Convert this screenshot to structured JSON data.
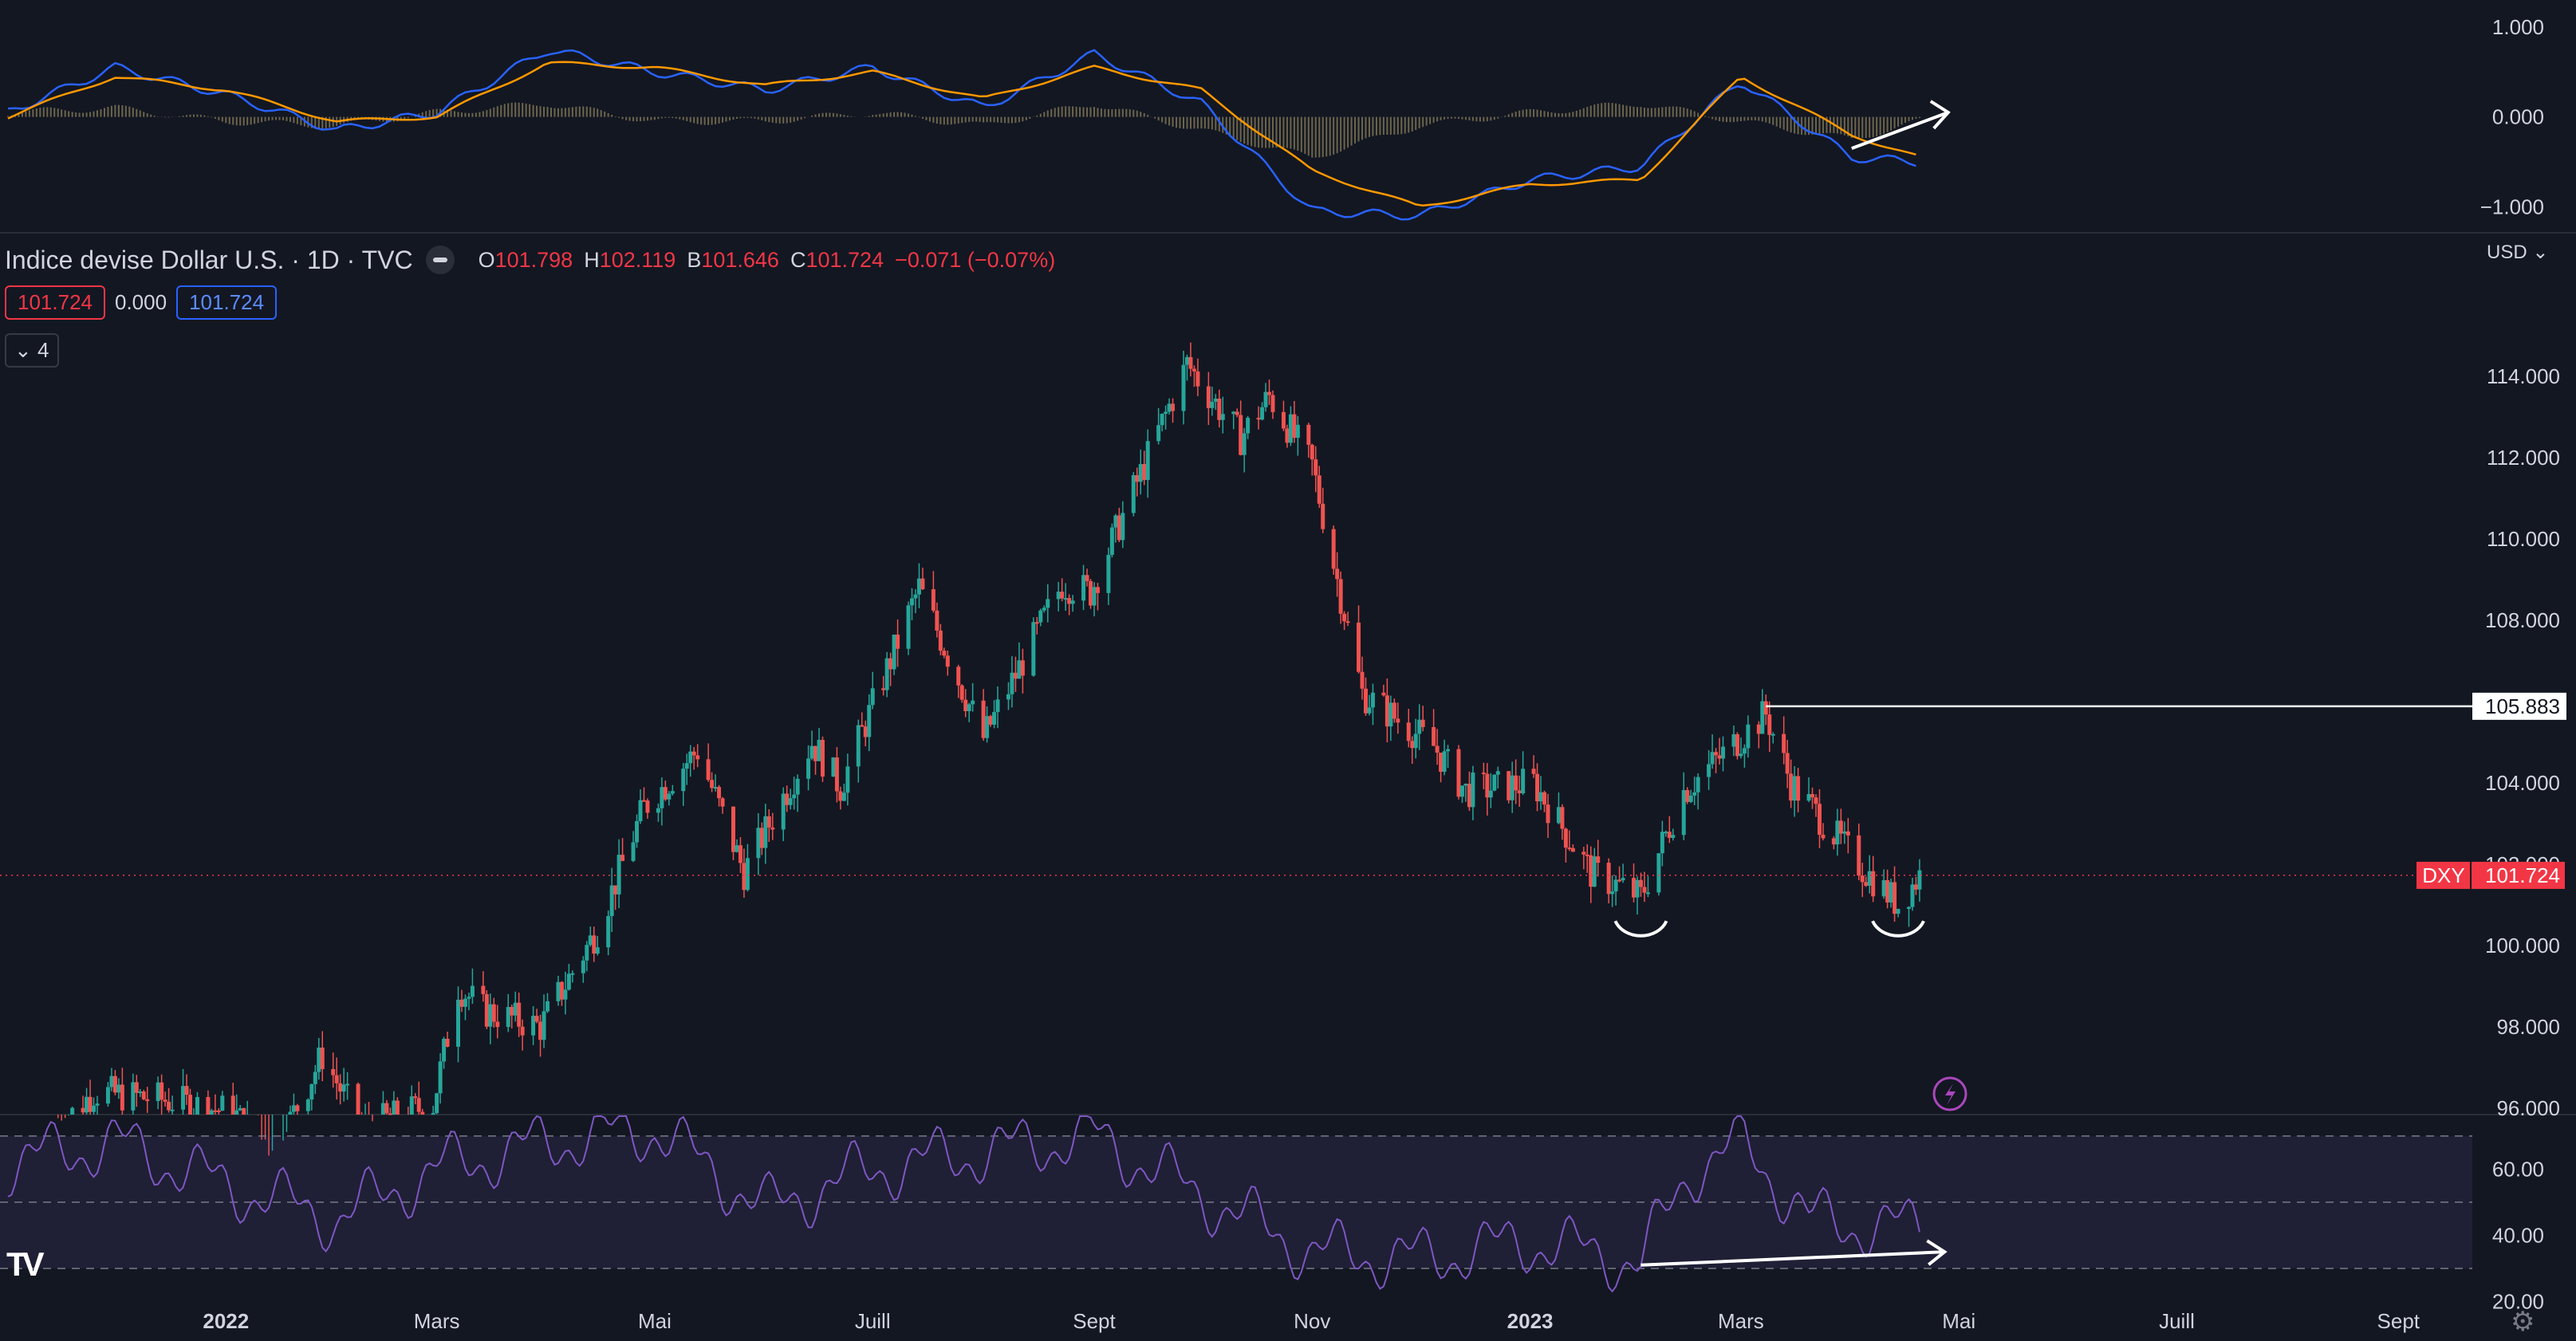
{
  "header": {
    "title": "Indice devise Dollar U.S. · 1D · TVC",
    "ohlc": [
      {
        "k": "O",
        "v": "101.798"
      },
      {
        "k": "H",
        "v": "102.119"
      },
      {
        "k": "B",
        "v": "101.646"
      },
      {
        "k": "C",
        "v": "101.724"
      }
    ],
    "change": "−0.071 (−0.07%)"
  },
  "badges": {
    "left": "101.724",
    "mid": "0.000",
    "right": "101.724"
  },
  "collapse_label": "4",
  "currency": "USD",
  "price_tag": {
    "symbol": "DXY",
    "value": "101.724"
  },
  "level_tag": "105.883",
  "colors": {
    "bg": "#131722",
    "up": "#26a69a",
    "down": "#ef5350",
    "macd": "#2962ff",
    "signal": "#ff9800",
    "rsi": "#7e57c2",
    "accent": "#f23645"
  },
  "icons": {
    "lightning": "lightning-icon",
    "settings": "gear-icon",
    "logo": "tradingview-logo"
  },
  "chart_data": [
    {
      "type": "line",
      "panel": "macd",
      "ylim": [
        -1.2,
        1.3
      ],
      "yticks": [
        "1.000",
        "0.000",
        "−1.000"
      ],
      "yticks_values": [
        1,
        0,
        -1
      ],
      "x": [
        "2021-11-01",
        "2021-12-01",
        "2022-01-01",
        "2022-02-01",
        "2022-03-01",
        "2022-04-01",
        "2022-05-01",
        "2022-06-01",
        "2022-07-01",
        "2022-08-01",
        "2022-09-01",
        "2022-10-01",
        "2022-11-01",
        "2022-12-01",
        "2023-01-01",
        "2023-02-01",
        "2023-03-01",
        "2023-04-01",
        "2023-04-20"
      ],
      "series": [
        {
          "values": [
            0.05,
            0.55,
            0.25,
            -0.15,
            0.05,
            0.75,
            0.5,
            0.3,
            0.55,
            0.1,
            0.7,
            0.15,
            -1.05,
            -1.1,
            -0.7,
            -0.55,
            0.4,
            -0.45,
            -0.5
          ]
        },
        {
          "values": [
            0.0,
            0.45,
            0.3,
            -0.05,
            0.0,
            0.6,
            0.55,
            0.35,
            0.5,
            0.2,
            0.55,
            0.3,
            -0.6,
            -1.0,
            -0.75,
            -0.7,
            0.45,
            -0.2,
            -0.45
          ]
        }
      ],
      "histogram": [
        0.05,
        0.1,
        -0.05,
        -0.1,
        0.05,
        0.15,
        -0.05,
        -0.05,
        0.05,
        -0.1,
        0.15,
        -0.15,
        -0.45,
        -0.1,
        0.05,
        0.15,
        -0.05,
        -0.25,
        -0.05
      ]
    },
    {
      "type": "candlestick",
      "panel": "price",
      "ylim": [
        95.8,
        116.0
      ],
      "yticks": [
        "114.000",
        "112.000",
        "110.000",
        "108.000",
        "106.000",
        "104.000",
        "102.000",
        "100.000",
        "98.000",
        "96.000"
      ],
      "yticks_values": [
        114,
        112,
        110,
        108,
        106,
        104,
        102,
        100,
        98,
        96
      ],
      "x_labels": [
        "2022",
        "Mars",
        "Mai",
        "Juill",
        "Sept",
        "Nov",
        "2023",
        "Mars",
        "Mai",
        "Juill",
        "Sept"
      ],
      "x_label_dates": [
        "2022-01-01",
        "2022-03-01",
        "2022-05-01",
        "2022-07-01",
        "2022-09-01",
        "2022-11-01",
        "2023-01-01",
        "2023-03-01",
        "2023-05-01",
        "2023-07-01",
        "2023-09-01"
      ],
      "x_range": [
        "2021-11-01",
        "2023-09-15"
      ],
      "path_dates": [
        "2021-11-15",
        "2021-11-25",
        "2021-12-15",
        "2022-01-03",
        "2022-01-14",
        "2022-01-28",
        "2022-02-08",
        "2022-02-28",
        "2022-03-07",
        "2022-03-14",
        "2022-03-30",
        "2022-04-15",
        "2022-04-28",
        "2022-05-13",
        "2022-05-26",
        "2022-06-14",
        "2022-06-22",
        "2022-07-14",
        "2022-08-01",
        "2022-08-23",
        "2022-08-31",
        "2022-09-27",
        "2022-10-12",
        "2022-10-20",
        "2022-11-01",
        "2022-11-15",
        "2022-12-05",
        "2022-12-14",
        "2023-01-02",
        "2023-01-18",
        "2023-02-01",
        "2023-02-13",
        "2023-03-08",
        "2023-03-15",
        "2023-04-03",
        "2023-04-14",
        "2023-04-20"
      ],
      "path_closes": [
        95.5,
        96.4,
        96.2,
        95.9,
        94.8,
        97.3,
        95.5,
        96.1,
        99.0,
        98.4,
        98.0,
        100.4,
        103.4,
        104.8,
        101.8,
        105.0,
        103.9,
        108.8,
        105.1,
        108.9,
        108.7,
        114.3,
        112.5,
        113.5,
        111.8,
        106.2,
        104.9,
        103.8,
        104.0,
        101.8,
        101.2,
        103.8,
        105.7,
        104.0,
        102.0,
        101.0,
        101.724
      ],
      "annotations": [
        {
          "type": "hline",
          "value": 105.883,
          "from_date": "2023-03-08",
          "label": "105.883"
        },
        {
          "type": "hline",
          "value": 101.724,
          "style": "dotted",
          "label": "101.724"
        },
        {
          "type": "arc",
          "date": "2023-02-01",
          "value": 100.6
        },
        {
          "type": "arc",
          "date": "2023-04-14",
          "value": 100.6
        }
      ]
    },
    {
      "type": "line",
      "panel": "rsi",
      "ylim": [
        23,
        76
      ],
      "yticks": [
        "60.00",
        "40.00",
        "20.00"
      ],
      "yticks_values": [
        60,
        40,
        20
      ],
      "band": [
        30,
        70
      ],
      "mid": 50,
      "x": [
        "2021-11-01",
        "2021-12-01",
        "2022-01-01",
        "2022-02-01",
        "2022-03-01",
        "2022-04-01",
        "2022-05-01",
        "2022-06-01",
        "2022-07-01",
        "2022-08-01",
        "2022-09-01",
        "2022-10-01",
        "2022-11-01",
        "2022-12-01",
        "2023-01-01",
        "2023-02-01",
        "2023-02-15",
        "2023-03-01",
        "2023-03-20",
        "2023-04-10",
        "2023-04-20"
      ],
      "values": [
        62,
        68,
        55,
        45,
        60,
        68,
        72,
        48,
        60,
        65,
        70,
        52,
        35,
        33,
        38,
        32,
        60,
        68,
        45,
        42,
        43
      ],
      "annotations": [
        {
          "type": "arrow",
          "from": [
            "2023-02-01",
            31
          ],
          "to": [
            "2023-04-27",
            35
          ]
        }
      ]
    }
  ]
}
